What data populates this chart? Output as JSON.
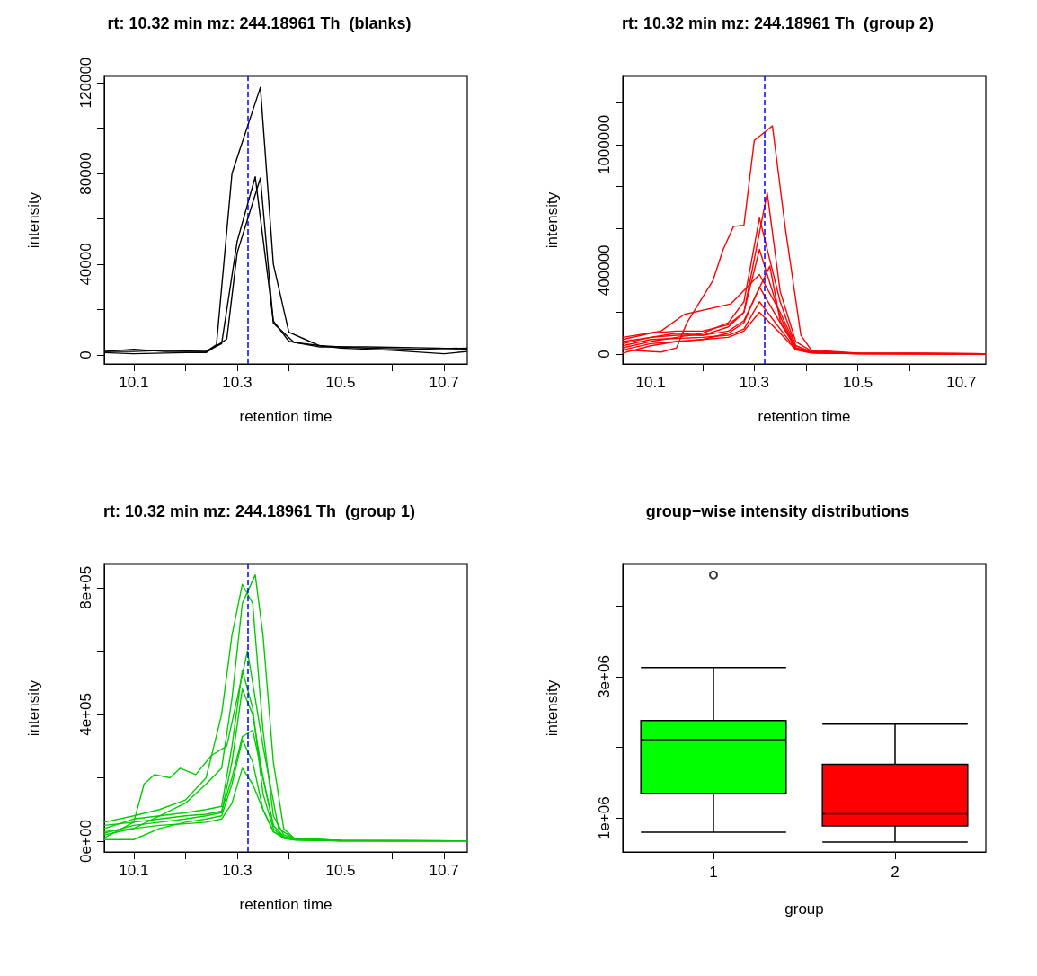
{
  "chart_data": [
    {
      "type": "line",
      "title": "rt: 10.32 min mz: 244.18961 Th  (blanks)",
      "xlabel": "retention time",
      "ylabel": "intensity",
      "xlim": [
        10.043,
        10.745
      ],
      "ylim": [
        -4000,
        122800
      ],
      "xticks": [
        {
          "value": 10.1,
          "label": "10.1"
        },
        {
          "value": 10.2,
          "label": null
        },
        {
          "value": 10.3,
          "label": "10.3"
        },
        {
          "value": 10.4,
          "label": null
        },
        {
          "value": 10.5,
          "label": "10.5"
        },
        {
          "value": 10.6,
          "label": null
        },
        {
          "value": 10.7,
          "label": "10.7"
        }
      ],
      "yticks": [
        0,
        {
          "value": 20000,
          "label": null
        },
        40000,
        {
          "value": 60000,
          "label": null
        },
        80000,
        {
          "value": 100000,
          "label": null
        },
        120000
      ],
      "ref_lines": [
        {
          "axis": "x",
          "value": 10.32,
          "color": "#0000ff",
          "line_style": "dashed"
        }
      ],
      "series": [
        {
          "color": "#000000",
          "x": [
            10.043,
            10.1,
            10.16,
            10.24,
            10.26,
            10.29,
            10.345,
            10.37,
            10.4,
            10.43,
            10.46,
            10.55,
            10.65,
            10.745
          ],
          "values": [
            1500,
            1500,
            2000,
            1500,
            4500,
            80000,
            118000,
            40000,
            10000,
            7000,
            4000,
            3000,
            2500,
            3000
          ]
        },
        {
          "color": "#000000",
          "x": [
            10.043,
            10.1,
            10.16,
            10.24,
            10.27,
            10.3,
            10.335,
            10.37,
            10.4,
            10.46,
            10.55,
            10.69,
            10.745
          ],
          "values": [
            1500,
            2500,
            1500,
            1500,
            5000,
            50000,
            78500,
            15000,
            6000,
            3500,
            3500,
            3000,
            2500
          ]
        },
        {
          "color": "#000000",
          "x": [
            10.043,
            10.1,
            10.2,
            10.24,
            10.28,
            10.3,
            10.345,
            10.37,
            10.41,
            10.5,
            10.6,
            10.7,
            10.745
          ],
          "values": [
            1000,
            500,
            1000,
            1000,
            7000,
            45000,
            78000,
            14000,
            5500,
            3000,
            2000,
            500,
            1500
          ]
        }
      ]
    },
    {
      "type": "line",
      "title": "rt: 10.32 min mz: 244.18961 Th  (group 2)",
      "xlabel": "retention time",
      "ylabel": "intensity",
      "xlim": [
        10.046,
        10.747
      ],
      "ylim": [
        -47000,
        1326000
      ],
      "xticks": [
        {
          "value": 10.1,
          "label": "10.1"
        },
        {
          "value": 10.2,
          "label": null
        },
        {
          "value": 10.3,
          "label": "10.3"
        },
        {
          "value": 10.4,
          "label": null
        },
        {
          "value": 10.5,
          "label": "10.5"
        },
        {
          "value": 10.6,
          "label": null
        },
        {
          "value": 10.7,
          "label": "10.7"
        }
      ],
      "yticks": [
        0,
        {
          "value": 200000,
          "label": null
        },
        400000,
        {
          "value": 600000,
          "label": null
        },
        {
          "value": 800000,
          "label": null
        },
        1000000,
        {
          "value": 1200000,
          "label": null
        }
      ],
      "ref_lines": [
        {
          "axis": "x",
          "value": 10.32,
          "color": "#0000ff",
          "line_style": "dashed"
        }
      ],
      "series": [
        {
          "color": "#ff0000",
          "x": [
            10.046,
            10.12,
            10.15,
            10.17,
            10.22,
            10.24,
            10.26,
            10.28,
            10.3,
            10.32,
            10.335,
            10.36,
            10.39,
            10.41,
            10.5,
            10.747
          ],
          "values": [
            20000,
            10000,
            30000,
            150000,
            350000,
            500000,
            610000,
            615000,
            1020000,
            1060000,
            1090000,
            600000,
            90000,
            20000,
            5000,
            2000
          ]
        },
        {
          "color": "#ff0000",
          "x": [
            10.046,
            10.1,
            10.15,
            10.2,
            10.25,
            10.28,
            10.325,
            10.35,
            10.38,
            10.41,
            10.5,
            10.747
          ],
          "values": [
            50000,
            80000,
            100000,
            90000,
            130000,
            200000,
            770000,
            300000,
            60000,
            15000,
            4000,
            2000
          ]
        },
        {
          "color": "#ff0000",
          "x": [
            10.046,
            10.1,
            10.15,
            10.2,
            10.25,
            10.28,
            10.31,
            10.35,
            10.38,
            10.41,
            10.5,
            10.747
          ],
          "values": [
            30000,
            60000,
            80000,
            100000,
            150000,
            250000,
            650000,
            250000,
            40000,
            10000,
            3000,
            2000
          ]
        },
        {
          "color": "#ff0000",
          "x": [
            10.046,
            10.1,
            10.15,
            10.2,
            10.25,
            10.28,
            10.31,
            10.35,
            10.38,
            10.41,
            10.5,
            10.747
          ],
          "values": [
            70000,
            100000,
            110000,
            110000,
            140000,
            200000,
            500000,
            180000,
            30000,
            8000,
            3000,
            2000
          ]
        },
        {
          "color": "#ff0000",
          "x": [
            10.046,
            10.12,
            10.165,
            10.255,
            10.31,
            10.35,
            10.38,
            10.41,
            10.5,
            10.747
          ],
          "values": [
            80000,
            110000,
            190000,
            240000,
            380000,
            200000,
            40000,
            10000,
            3000,
            2000
          ]
        },
        {
          "color": "#ff0000",
          "x": [
            10.046,
            10.1,
            10.15,
            10.2,
            10.25,
            10.28,
            10.31,
            10.35,
            10.38,
            10.41,
            10.5,
            10.747
          ],
          "values": [
            20000,
            50000,
            60000,
            70000,
            100000,
            150000,
            320000,
            150000,
            30000,
            8000,
            2000,
            1500
          ]
        },
        {
          "color": "#ff0000",
          "x": [
            10.046,
            10.1,
            10.15,
            10.2,
            10.25,
            10.28,
            10.31,
            10.35,
            10.38,
            10.41,
            10.5,
            10.747
          ],
          "values": [
            40000,
            70000,
            75000,
            80000,
            90000,
            120000,
            250000,
            120000,
            25000,
            6000,
            2000,
            1500
          ]
        },
        {
          "color": "#ff0000",
          "x": [
            10.046,
            10.1,
            10.15,
            10.2,
            10.25,
            10.28,
            10.31,
            10.35,
            10.38,
            10.41,
            10.5,
            10.747
          ],
          "values": [
            5000,
            40000,
            60000,
            70000,
            80000,
            110000,
            200000,
            100000,
            20000,
            5000,
            2000,
            1500
          ]
        },
        {
          "color": "#ff0000",
          "x": [
            10.046,
            10.1,
            10.15,
            10.2,
            10.25,
            10.28,
            10.33,
            10.35,
            10.38,
            10.41,
            10.5,
            10.747
          ],
          "values": [
            60000,
            80000,
            90000,
            90000,
            110000,
            160000,
            420000,
            160000,
            30000,
            8000,
            2000,
            1500
          ]
        }
      ]
    },
    {
      "type": "line",
      "title": "rt: 10.32 min mz: 244.18961 Th  (group 1)",
      "xlabel": "retention time",
      "ylabel": "intensity",
      "xlim": [
        10.043,
        10.745
      ],
      "ylim": [
        -34000,
        873000
      ],
      "xticks": [
        {
          "value": 10.1,
          "label": "10.1"
        },
        {
          "value": 10.2,
          "label": null
        },
        {
          "value": 10.3,
          "label": "10.3"
        },
        {
          "value": 10.4,
          "label": null
        },
        {
          "value": 10.5,
          "label": "10.5"
        },
        {
          "value": 10.6,
          "label": null
        },
        {
          "value": 10.7,
          "label": "10.7"
        }
      ],
      "yticks": [
        {
          "value": 0,
          "label": "0e+00"
        },
        {
          "value": 200000,
          "label": null
        },
        {
          "value": 400000,
          "label": "4e+05"
        },
        {
          "value": 600000,
          "label": null
        },
        {
          "value": 800000,
          "label": "8e+05"
        }
      ],
      "ref_lines": [
        {
          "axis": "x",
          "value": 10.32,
          "color": "#0000ff",
          "line_style": "dashed"
        }
      ],
      "series": [
        {
          "color": "#00cd00",
          "x": [
            10.043,
            10.1,
            10.15,
            10.2,
            10.24,
            10.27,
            10.29,
            10.31,
            10.335,
            10.35,
            10.37,
            10.39,
            10.41,
            10.5,
            10.745
          ],
          "values": [
            20000,
            40000,
            80000,
            120000,
            180000,
            230000,
            450000,
            750000,
            840000,
            650000,
            250000,
            40000,
            10000,
            2000,
            1000
          ]
        },
        {
          "color": "#00cd00",
          "x": [
            10.043,
            10.1,
            10.15,
            10.2,
            10.24,
            10.27,
            10.29,
            10.31,
            10.33,
            10.35,
            10.37,
            10.39,
            10.41,
            10.5,
            10.745
          ],
          "values": [
            60000,
            80000,
            100000,
            130000,
            200000,
            400000,
            650000,
            810000,
            750000,
            350000,
            80000,
            20000,
            8000,
            2000,
            1000
          ]
        },
        {
          "color": "#00cd00",
          "x": [
            10.043,
            10.1,
            10.12,
            10.14,
            10.17,
            10.19,
            10.22,
            10.25,
            10.28,
            10.32,
            10.35,
            10.38,
            10.41,
            10.5,
            10.745
          ],
          "values": [
            10000,
            60000,
            180000,
            210000,
            200000,
            230000,
            210000,
            270000,
            300000,
            600000,
            300000,
            40000,
            8000,
            2000,
            1000
          ]
        },
        {
          "color": "#00cd00",
          "x": [
            10.043,
            10.1,
            10.15,
            10.2,
            10.24,
            10.27,
            10.29,
            10.31,
            10.33,
            10.35,
            10.37,
            10.39,
            10.41,
            10.5,
            10.745
          ],
          "values": [
            40000,
            70000,
            80000,
            90000,
            100000,
            110000,
            300000,
            540000,
            420000,
            150000,
            40000,
            10000,
            5000,
            1500,
            1000
          ]
        },
        {
          "color": "#00cd00",
          "x": [
            10.043,
            10.1,
            10.15,
            10.2,
            10.24,
            10.27,
            10.29,
            10.31,
            10.33,
            10.35,
            10.37,
            10.39,
            10.41,
            10.5,
            10.745
          ],
          "values": [
            25000,
            50000,
            60000,
            70000,
            80000,
            90000,
            250000,
            480000,
            400000,
            200000,
            50000,
            15000,
            5000,
            1500,
            1000
          ]
        },
        {
          "color": "#00cd00",
          "x": [
            10.043,
            10.1,
            10.15,
            10.2,
            10.24,
            10.27,
            10.29,
            10.31,
            10.33,
            10.35,
            10.37,
            10.39,
            10.41,
            10.5,
            10.745
          ],
          "values": [
            50000,
            60000,
            70000,
            80000,
            85000,
            95000,
            200000,
            330000,
            350000,
            200000,
            50000,
            12000,
            5000,
            1500,
            1000
          ]
        },
        {
          "color": "#00cd00",
          "x": [
            10.043,
            10.1,
            10.15,
            10.2,
            10.24,
            10.27,
            10.29,
            10.31,
            10.33,
            10.35,
            10.37,
            10.39,
            10.41,
            10.5,
            10.745
          ],
          "values": [
            5000,
            5000,
            40000,
            60000,
            70000,
            80000,
            180000,
            320000,
            250000,
            100000,
            30000,
            10000,
            4000,
            1500,
            1000
          ]
        },
        {
          "color": "#00cd00",
          "x": [
            10.043,
            10.1,
            10.15,
            10.2,
            10.24,
            10.27,
            10.29,
            10.31,
            10.33,
            10.35,
            10.37,
            10.39,
            10.41,
            10.5,
            10.745
          ],
          "values": [
            30000,
            40000,
            50000,
            55000,
            60000,
            70000,
            120000,
            230000,
            180000,
            100000,
            30000,
            10000,
            4000,
            1500,
            1000
          ]
        }
      ]
    },
    {
      "type": "box",
      "title": "group−wise intensity distributions",
      "xlabel": "group",
      "ylabel": "intensity",
      "categories": [
        "1",
        "2"
      ],
      "colors": [
        "#00ff00",
        "#ff0000"
      ],
      "ylim": [
        520000,
        4590000
      ],
      "yticks": [
        {
          "value": 1000000,
          "label": "1e+06"
        },
        {
          "value": 2000000,
          "label": null
        },
        {
          "value": 3000000,
          "label": "3e+06"
        },
        {
          "value": 4000000,
          "label": null
        }
      ],
      "boxes": [
        {
          "low": 800000,
          "q1": 1350000,
          "median": 2110000,
          "q3": 2380000,
          "high": 3130000,
          "outliers": [
            4440000
          ]
        },
        {
          "low": 660000,
          "q1": 890000,
          "median": 1060000,
          "q3": 1760000,
          "high": 2330000
        }
      ]
    }
  ]
}
